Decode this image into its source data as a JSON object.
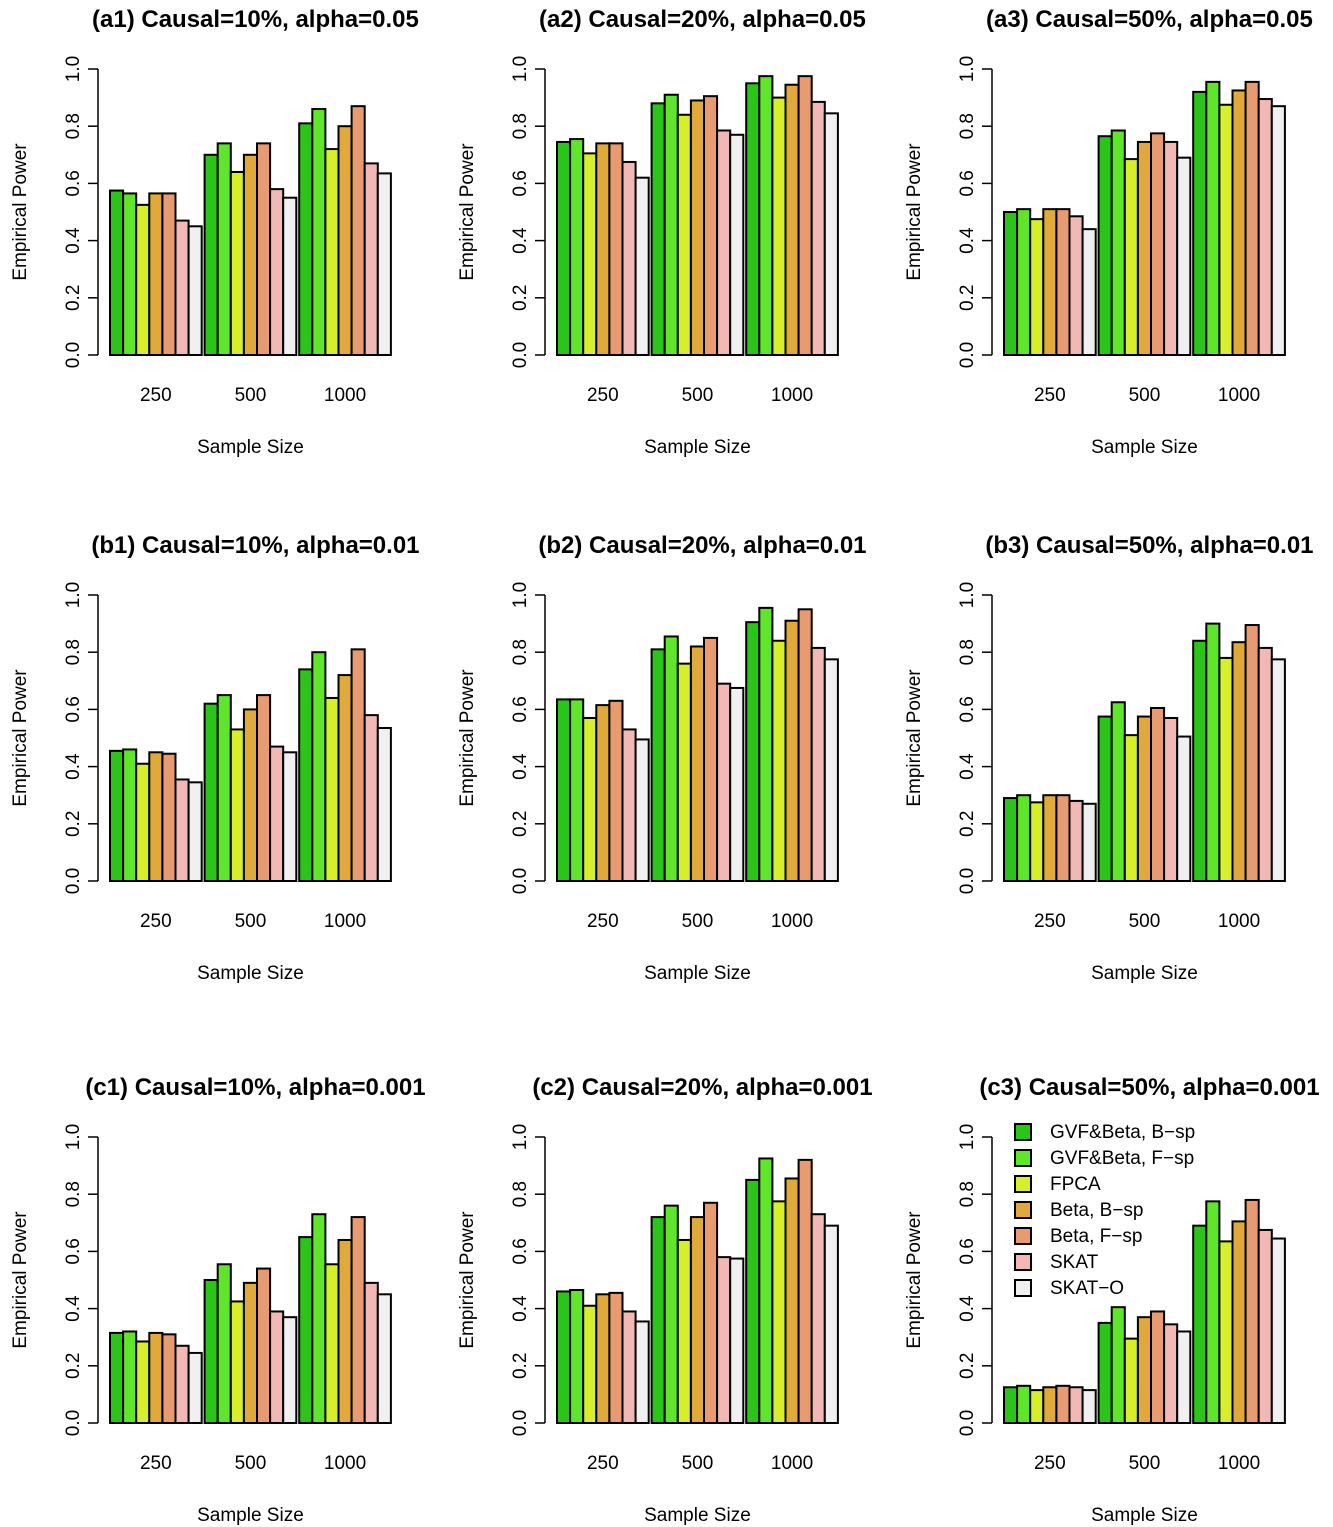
{
  "colors": {
    "series": [
      "#2bc418",
      "#5fe62a",
      "#d7ef2a",
      "#e0a93a",
      "#e89b70",
      "#f2b8b6",
      "#f0f0f0"
    ],
    "outline": "#000000"
  },
  "chart_data": [
    {
      "type": "bar",
      "title": "(a1) Causal=10%, alpha=0.05",
      "xlabel": "Sample Size",
      "ylabel": "Empirical Power",
      "ylim": [
        0,
        1
      ],
      "yticks": [
        "0.0",
        "0.2",
        "0.4",
        "0.6",
        "0.8",
        "1.0"
      ],
      "categories": [
        "250",
        "500",
        "1000"
      ],
      "series": [
        {
          "name": "GVF&Beta, B-sp",
          "values": [
            0.575,
            0.7,
            0.81
          ]
        },
        {
          "name": "GVF&Beta, F-sp",
          "values": [
            0.565,
            0.74,
            0.86
          ]
        },
        {
          "name": "FPCA",
          "values": [
            0.525,
            0.64,
            0.72
          ]
        },
        {
          "name": "Beta, B-sp",
          "values": [
            0.565,
            0.7,
            0.8
          ]
        },
        {
          "name": "Beta, F-sp",
          "values": [
            0.565,
            0.74,
            0.87
          ]
        },
        {
          "name": "SKAT",
          "values": [
            0.47,
            0.58,
            0.67
          ]
        },
        {
          "name": "SKAT-O",
          "values": [
            0.45,
            0.55,
            0.635
          ]
        }
      ]
    },
    {
      "type": "bar",
      "title": "(a2) Causal=20%, alpha=0.05",
      "xlabel": "Sample Size",
      "ylabel": "Empirical Power",
      "ylim": [
        0,
        1
      ],
      "yticks": [
        "0.0",
        "0.2",
        "0.4",
        "0.6",
        "0.8",
        "1.0"
      ],
      "categories": [
        "250",
        "500",
        "1000"
      ],
      "series": [
        {
          "name": "GVF&Beta, B-sp",
          "values": [
            0.745,
            0.88,
            0.95
          ]
        },
        {
          "name": "GVF&Beta, F-sp",
          "values": [
            0.755,
            0.91,
            0.975
          ]
        },
        {
          "name": "FPCA",
          "values": [
            0.705,
            0.84,
            0.9
          ]
        },
        {
          "name": "Beta, B-sp",
          "values": [
            0.74,
            0.89,
            0.945
          ]
        },
        {
          "name": "Beta, F-sp",
          "values": [
            0.74,
            0.905,
            0.975
          ]
        },
        {
          "name": "SKAT",
          "values": [
            0.675,
            0.785,
            0.885
          ]
        },
        {
          "name": "SKAT-O",
          "values": [
            0.62,
            0.77,
            0.845
          ]
        }
      ]
    },
    {
      "type": "bar",
      "title": "(a3) Causal=50%, alpha=0.05",
      "xlabel": "Sample Size",
      "ylabel": "Empirical Power",
      "ylim": [
        0,
        1
      ],
      "yticks": [
        "0.0",
        "0.2",
        "0.4",
        "0.6",
        "0.8",
        "1.0"
      ],
      "categories": [
        "250",
        "500",
        "1000"
      ],
      "series": [
        {
          "name": "GVF&Beta, B-sp",
          "values": [
            0.5,
            0.765,
            0.92
          ]
        },
        {
          "name": "GVF&Beta, F-sp",
          "values": [
            0.51,
            0.785,
            0.955
          ]
        },
        {
          "name": "FPCA",
          "values": [
            0.475,
            0.685,
            0.875
          ]
        },
        {
          "name": "Beta, B-sp",
          "values": [
            0.51,
            0.745,
            0.925
          ]
        },
        {
          "name": "Beta, F-sp",
          "values": [
            0.51,
            0.775,
            0.955
          ]
        },
        {
          "name": "SKAT",
          "values": [
            0.485,
            0.745,
            0.895
          ]
        },
        {
          "name": "SKAT-O",
          "values": [
            0.44,
            0.69,
            0.87
          ]
        }
      ]
    },
    {
      "type": "bar",
      "title": "(b1) Causal=10%, alpha=0.01",
      "xlabel": "Sample Size",
      "ylabel": "Empirical Power",
      "ylim": [
        0,
        1
      ],
      "yticks": [
        "0.0",
        "0.2",
        "0.4",
        "0.6",
        "0.8",
        "1.0"
      ],
      "categories": [
        "250",
        "500",
        "1000"
      ],
      "series": [
        {
          "name": "GVF&Beta, B-sp",
          "values": [
            0.455,
            0.62,
            0.74
          ]
        },
        {
          "name": "GVF&Beta, F-sp",
          "values": [
            0.46,
            0.65,
            0.8
          ]
        },
        {
          "name": "FPCA",
          "values": [
            0.41,
            0.53,
            0.64
          ]
        },
        {
          "name": "Beta, B-sp",
          "values": [
            0.45,
            0.6,
            0.72
          ]
        },
        {
          "name": "Beta, F-sp",
          "values": [
            0.445,
            0.65,
            0.81
          ]
        },
        {
          "name": "SKAT",
          "values": [
            0.355,
            0.47,
            0.58
          ]
        },
        {
          "name": "SKAT-O",
          "values": [
            0.345,
            0.45,
            0.535
          ]
        }
      ]
    },
    {
      "type": "bar",
      "title": "(b2) Causal=20%, alpha=0.01",
      "xlabel": "Sample Size",
      "ylabel": "Empirical Power",
      "ylim": [
        0,
        1
      ],
      "yticks": [
        "0.0",
        "0.2",
        "0.4",
        "0.6",
        "0.8",
        "1.0"
      ],
      "categories": [
        "250",
        "500",
        "1000"
      ],
      "series": [
        {
          "name": "GVF&Beta, B-sp",
          "values": [
            0.635,
            0.81,
            0.905
          ]
        },
        {
          "name": "GVF&Beta, F-sp",
          "values": [
            0.635,
            0.855,
            0.955
          ]
        },
        {
          "name": "FPCA",
          "values": [
            0.57,
            0.76,
            0.84
          ]
        },
        {
          "name": "Beta, B-sp",
          "values": [
            0.615,
            0.82,
            0.91
          ]
        },
        {
          "name": "Beta, F-sp",
          "values": [
            0.63,
            0.85,
            0.95
          ]
        },
        {
          "name": "SKAT",
          "values": [
            0.53,
            0.69,
            0.815
          ]
        },
        {
          "name": "SKAT-O",
          "values": [
            0.495,
            0.675,
            0.775
          ]
        }
      ]
    },
    {
      "type": "bar",
      "title": "(b3) Causal=50%, alpha=0.01",
      "xlabel": "Sample Size",
      "ylabel": "Empirical Power",
      "ylim": [
        0,
        1
      ],
      "yticks": [
        "0.0",
        "0.2",
        "0.4",
        "0.6",
        "0.8",
        "1.0"
      ],
      "categories": [
        "250",
        "500",
        "1000"
      ],
      "series": [
        {
          "name": "GVF&Beta, B-sp",
          "values": [
            0.29,
            0.575,
            0.84
          ]
        },
        {
          "name": "GVF&Beta, F-sp",
          "values": [
            0.3,
            0.625,
            0.9
          ]
        },
        {
          "name": "FPCA",
          "values": [
            0.275,
            0.51,
            0.78
          ]
        },
        {
          "name": "Beta, B-sp",
          "values": [
            0.3,
            0.575,
            0.835
          ]
        },
        {
          "name": "Beta, F-sp",
          "values": [
            0.3,
            0.605,
            0.895
          ]
        },
        {
          "name": "SKAT",
          "values": [
            0.28,
            0.57,
            0.815
          ]
        },
        {
          "name": "SKAT-O",
          "values": [
            0.27,
            0.505,
            0.775
          ]
        }
      ]
    },
    {
      "type": "bar",
      "title": "(c1) Causal=10%, alpha=0.001",
      "xlabel": "Sample Size",
      "ylabel": "Empirical Power",
      "ylim": [
        0,
        1
      ],
      "yticks": [
        "0.0",
        "0.2",
        "0.4",
        "0.6",
        "0.8",
        "1.0"
      ],
      "categories": [
        "250",
        "500",
        "1000"
      ],
      "series": [
        {
          "name": "GVF&Beta, B-sp",
          "values": [
            0.315,
            0.5,
            0.65
          ]
        },
        {
          "name": "GVF&Beta, F-sp",
          "values": [
            0.32,
            0.555,
            0.73
          ]
        },
        {
          "name": "FPCA",
          "values": [
            0.285,
            0.425,
            0.555
          ]
        },
        {
          "name": "Beta, B-sp",
          "values": [
            0.315,
            0.49,
            0.64
          ]
        },
        {
          "name": "Beta, F-sp",
          "values": [
            0.31,
            0.54,
            0.72
          ]
        },
        {
          "name": "SKAT",
          "values": [
            0.27,
            0.39,
            0.49
          ]
        },
        {
          "name": "SKAT-O",
          "values": [
            0.245,
            0.37,
            0.45
          ]
        }
      ]
    },
    {
      "type": "bar",
      "title": "(c2) Causal=20%, alpha=0.001",
      "xlabel": "Sample Size",
      "ylabel": "Empirical Power",
      "ylim": [
        0,
        1
      ],
      "yticks": [
        "0.0",
        "0.2",
        "0.4",
        "0.6",
        "0.8",
        "1.0"
      ],
      "categories": [
        "250",
        "500",
        "1000"
      ],
      "series": [
        {
          "name": "GVF&Beta, B-sp",
          "values": [
            0.46,
            0.72,
            0.85
          ]
        },
        {
          "name": "GVF&Beta, F-sp",
          "values": [
            0.465,
            0.76,
            0.925
          ]
        },
        {
          "name": "FPCA",
          "values": [
            0.41,
            0.64,
            0.775
          ]
        },
        {
          "name": "Beta, B-sp",
          "values": [
            0.45,
            0.72,
            0.855
          ]
        },
        {
          "name": "Beta, F-sp",
          "values": [
            0.455,
            0.77,
            0.92
          ]
        },
        {
          "name": "SKAT",
          "values": [
            0.39,
            0.58,
            0.73
          ]
        },
        {
          "name": "SKAT-O",
          "values": [
            0.355,
            0.575,
            0.69
          ]
        }
      ]
    },
    {
      "type": "bar",
      "title": "(c3) Causal=50%, alpha=0.001",
      "xlabel": "Sample Size",
      "ylabel": "Empirical Power",
      "ylim": [
        0,
        1
      ],
      "yticks": [
        "0.0",
        "0.2",
        "0.4",
        "0.6",
        "0.8",
        "1.0"
      ],
      "categories": [
        "250",
        "500",
        "1000"
      ],
      "legend": {
        "position": "top-left",
        "labels": [
          "GVF&Beta, B−sp",
          "GVF&Beta, F−sp",
          "FPCA",
          "Beta, B−sp",
          "Beta, F−sp",
          "SKAT",
          "SKAT−O"
        ]
      },
      "series": [
        {
          "name": "GVF&Beta, B-sp",
          "values": [
            0.125,
            0.35,
            0.69
          ]
        },
        {
          "name": "GVF&Beta, F-sp",
          "values": [
            0.13,
            0.405,
            0.775
          ]
        },
        {
          "name": "FPCA",
          "values": [
            0.115,
            0.295,
            0.635
          ]
        },
        {
          "name": "Beta, B-sp",
          "values": [
            0.125,
            0.37,
            0.705
          ]
        },
        {
          "name": "Beta, F-sp",
          "values": [
            0.13,
            0.39,
            0.78
          ]
        },
        {
          "name": "SKAT",
          "values": [
            0.125,
            0.345,
            0.675
          ]
        },
        {
          "name": "SKAT-O",
          "values": [
            0.115,
            0.32,
            0.645
          ]
        }
      ]
    }
  ]
}
